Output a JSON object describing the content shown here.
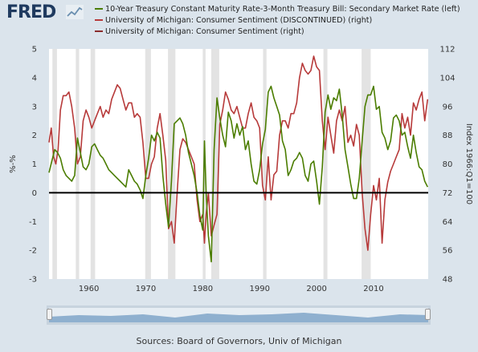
{
  "header": {
    "logo_text": "FRED",
    "logo_icon": "trend-graph-icon"
  },
  "legend": [
    {
      "label": "10-Year Treasury Constant Maturity Rate-3-Month Treasury Bill: Secondary Market Rate (left)",
      "color": "#4b7d00"
    },
    {
      "label": "University of Michigan: Consumer Sentiment (DISCONTINUED) (right)",
      "color": "#b73a3a"
    },
    {
      "label": "University of Michigan: Consumer Sentiment (right)",
      "color": "#8b2d2d"
    }
  ],
  "sources": "Sources: Board of Governors, Univ of Michigan",
  "colors": {
    "background": "#dbe4ec",
    "plot_background": "#ffffff",
    "recession_shading": "#e3e3e3",
    "spread_line": "#4b7d00",
    "sentiment_line": "#b73a3a",
    "zero_line": "#000000"
  },
  "chart_data": {
    "type": "line",
    "xlim": [
      1953,
      2019.6
    ],
    "x_ticks": [
      "1960",
      "1970",
      "1980",
      "1990",
      "2000",
      "2010"
    ],
    "y_left": {
      "label": "%-%",
      "ylim": [
        -3,
        5
      ],
      "ticks": [
        "-3",
        "-2",
        "-1",
        "0",
        "1",
        "2",
        "3",
        "4",
        "5"
      ]
    },
    "y_right": {
      "label": "Index 1966:Q1=100",
      "ylim": [
        48,
        112
      ],
      "ticks": [
        "48",
        "56",
        "64",
        "72",
        "80",
        "88",
        "96",
        "104",
        "112"
      ]
    },
    "grid": false,
    "legend_position": "top",
    "recessions": [
      [
        1953.6,
        1954.4
      ],
      [
        1957.7,
        1958.3
      ],
      [
        1960.3,
        1961.1
      ],
      [
        1969.9,
        1970.9
      ],
      [
        1973.9,
        1975.2
      ],
      [
        1980.0,
        1980.5
      ],
      [
        1981.5,
        1982.9
      ],
      [
        1990.6,
        1991.2
      ],
      [
        2001.2,
        2001.9
      ],
      [
        2007.9,
        2009.5
      ]
    ],
    "series": [
      {
        "name": "10-Year Treasury Constant Maturity Rate-3-Month Treasury Bill: Secondary Market Rate",
        "axis": "left",
        "x": [
          1953.0,
          1953.5,
          1954.0,
          1954.5,
          1955.0,
          1955.5,
          1956.0,
          1956.5,
          1957.0,
          1957.5,
          1958.0,
          1958.5,
          1959.0,
          1959.5,
          1960.0,
          1960.5,
          1961.0,
          1961.5,
          1962.0,
          1962.5,
          1963.0,
          1963.5,
          1964.0,
          1964.5,
          1965.0,
          1965.5,
          1966.0,
          1966.5,
          1967.0,
          1967.5,
          1968.0,
          1968.5,
          1969.0,
          1969.5,
          1970.0,
          1970.5,
          1971.0,
          1971.5,
          1972.0,
          1972.5,
          1973.0,
          1973.5,
          1974.0,
          1974.5,
          1975.0,
          1975.5,
          1976.0,
          1976.5,
          1977.0,
          1977.5,
          1978.0,
          1978.5,
          1979.0,
          1979.5,
          1980.0,
          1980.3,
          1980.6,
          1981.0,
          1981.5,
          1982.0,
          1982.5,
          1983.0,
          1983.5,
          1984.0,
          1984.5,
          1985.0,
          1985.5,
          1986.0,
          1986.5,
          1987.0,
          1987.5,
          1988.0,
          1988.5,
          1989.0,
          1989.5,
          1990.0,
          1990.5,
          1991.0,
          1991.5,
          1992.0,
          1992.5,
          1993.0,
          1993.5,
          1994.0,
          1994.5,
          1995.0,
          1995.5,
          1996.0,
          1996.5,
          1997.0,
          1997.5,
          1998.0,
          1998.5,
          1999.0,
          1999.5,
          2000.0,
          2000.5,
          2001.0,
          2001.5,
          2002.0,
          2002.5,
          2003.0,
          2003.5,
          2004.0,
          2004.5,
          2005.0,
          2005.5,
          2006.0,
          2006.5,
          2007.0,
          2007.5,
          2008.0,
          2008.5,
          2009.0,
          2009.5,
          2010.0,
          2010.5,
          2011.0,
          2011.5,
          2012.0,
          2012.5,
          2013.0,
          2013.5,
          2014.0,
          2014.5,
          2015.0,
          2015.5,
          2016.0,
          2016.5,
          2017.0,
          2017.5,
          2018.0,
          2018.5,
          2019.0,
          2019.5
        ],
        "values": [
          0.7,
          1.1,
          1.5,
          1.4,
          1.2,
          0.8,
          0.6,
          0.5,
          0.4,
          0.6,
          1.9,
          1.4,
          0.9,
          0.8,
          1.0,
          1.6,
          1.7,
          1.5,
          1.3,
          1.2,
          1.0,
          0.8,
          0.7,
          0.6,
          0.5,
          0.4,
          0.3,
          0.2,
          0.8,
          0.6,
          0.4,
          0.3,
          0.1,
          -0.2,
          0.6,
          1.2,
          2.0,
          1.8,
          2.1,
          1.9,
          0.6,
          -0.4,
          -1.2,
          0.4,
          2.4,
          2.5,
          2.6,
          2.4,
          2.0,
          1.4,
          1.0,
          0.6,
          0.0,
          -0.8,
          -1.3,
          1.8,
          0.0,
          -1.5,
          -2.4,
          1.5,
          3.3,
          2.6,
          2.0,
          1.6,
          2.8,
          2.5,
          1.9,
          2.4,
          2.0,
          2.3,
          1.5,
          1.8,
          1.0,
          0.4,
          0.3,
          0.8,
          1.7,
          2.2,
          3.5,
          3.7,
          3.3,
          3.0,
          2.7,
          1.8,
          1.5,
          0.6,
          0.8,
          1.1,
          1.2,
          1.4,
          1.2,
          0.6,
          0.4,
          1.0,
          1.1,
          0.4,
          -0.4,
          0.9,
          2.8,
          3.4,
          2.9,
          3.3,
          3.2,
          3.6,
          2.7,
          1.5,
          0.9,
          0.3,
          -0.2,
          -0.2,
          0.5,
          1.8,
          3.0,
          3.4,
          3.4,
          3.7,
          2.9,
          3.0,
          2.1,
          1.9,
          1.5,
          1.8,
          2.6,
          2.7,
          2.5,
          2.0,
          2.1,
          1.6,
          1.2,
          2.0,
          1.4,
          0.9,
          0.8,
          0.4,
          0.2
        ]
      },
      {
        "name": "University of Michigan: Consumer Sentiment",
        "axis": "right",
        "x": [
          1953.0,
          1953.4,
          1953.8,
          1954.2,
          1954.6,
          1955.0,
          1955.5,
          1956.0,
          1956.5,
          1957.0,
          1957.5,
          1958.0,
          1958.5,
          1959.0,
          1959.5,
          1960.0,
          1960.5,
          1961.0,
          1961.5,
          1962.0,
          1962.5,
          1963.0,
          1963.5,
          1964.0,
          1964.5,
          1965.0,
          1965.5,
          1966.0,
          1966.5,
          1967.0,
          1967.5,
          1968.0,
          1968.5,
          1969.0,
          1969.5,
          1970.0,
          1970.5,
          1971.0,
          1971.5,
          1972.0,
          1972.5,
          1973.0,
          1973.5,
          1974.0,
          1974.5,
          1975.0,
          1975.5,
          1976.0,
          1976.5,
          1977.0,
          1977.5,
          1978.0,
          1978.5,
          1979.0,
          1979.5,
          1980.0,
          1980.3,
          1980.6,
          1981.0,
          1981.5,
          1982.0,
          1982.5,
          1983.0,
          1983.5,
          1984.0,
          1984.5,
          1985.0,
          1985.5,
          1986.0,
          1986.5,
          1987.0,
          1987.5,
          1988.0,
          1988.5,
          1989.0,
          1989.5,
          1990.0,
          1990.5,
          1991.0,
          1991.5,
          1992.0,
          1992.5,
          1993.0,
          1993.5,
          1994.0,
          1994.5,
          1995.0,
          1995.5,
          1996.0,
          1996.5,
          1997.0,
          1997.5,
          1998.0,
          1998.5,
          1999.0,
          1999.5,
          2000.0,
          2000.5,
          2001.0,
          2001.5,
          2002.0,
          2002.5,
          2003.0,
          2003.5,
          2004.0,
          2004.5,
          2005.0,
          2005.5,
          2006.0,
          2006.5,
          2007.0,
          2007.5,
          2008.0,
          2008.5,
          2009.0,
          2009.5,
          2010.0,
          2010.5,
          2011.0,
          2011.5,
          2012.0,
          2012.5,
          2013.0,
          2013.5,
          2014.0,
          2014.5,
          2015.0,
          2015.5,
          2016.0,
          2016.5,
          2017.0,
          2017.5,
          2018.0,
          2018.5,
          2019.0,
          2019.5
        ],
        "values": [
          86,
          90,
          82,
          80,
          84,
          95,
          99,
          99,
          100,
          96,
          90,
          80,
          82,
          92,
          95,
          93,
          90,
          92,
          94,
          96,
          93,
          95,
          94,
          98,
          100,
          102,
          101,
          98,
          95,
          97,
          97,
          93,
          94,
          93,
          86,
          76,
          76,
          80,
          82,
          90,
          94,
          88,
          81,
          62,
          64,
          58,
          72,
          84,
          87,
          86,
          84,
          82,
          80,
          70,
          64,
          66,
          58,
          66,
          72,
          60,
          63,
          66,
          91,
          95,
          100,
          98,
          95,
          94,
          96,
          93,
          90,
          90,
          94,
          97,
          93,
          92,
          90,
          74,
          70,
          82,
          70,
          77,
          78,
          88,
          92,
          92,
          90,
          94,
          94,
          97,
          104,
          108,
          106,
          105,
          106,
          110,
          107,
          106,
          92,
          84,
          93,
          88,
          83,
          92,
          95,
          92,
          96,
          86,
          88,
          85,
          91,
          88,
          72,
          62,
          56,
          66,
          74,
          70,
          76,
          58,
          70,
          75,
          78,
          80,
          82,
          84,
          94,
          90,
          93,
          88,
          97,
          95,
          98,
          100,
          92,
          98
        ]
      }
    ]
  }
}
